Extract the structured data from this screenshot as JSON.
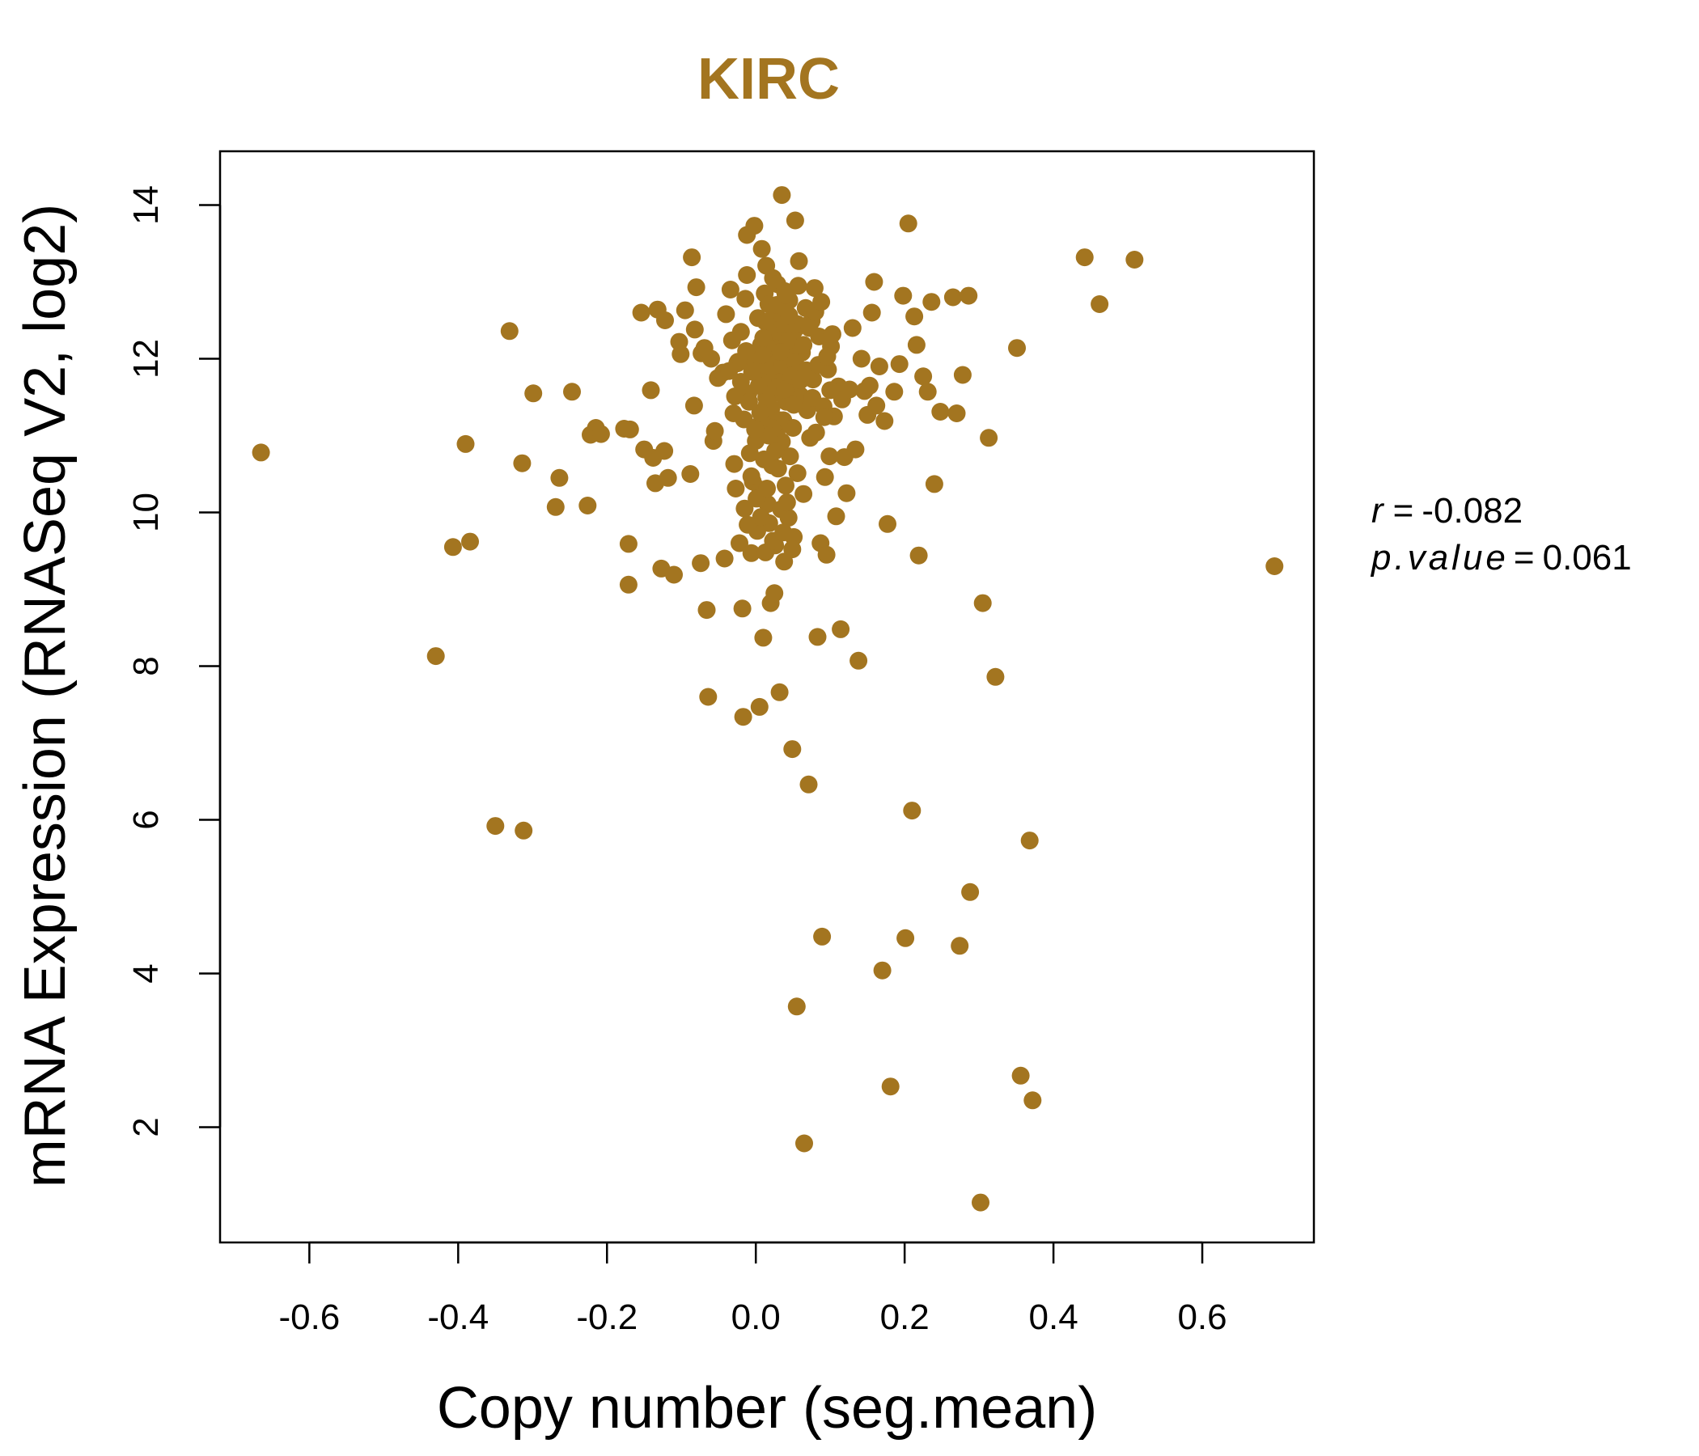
{
  "chart_data": {
    "type": "scatter",
    "title": "KIRC",
    "xlabel": "Copy number (seg.mean)",
    "ylabel": "mRNA Expression (RNASeq V2, log2)",
    "xlim": [
      -0.72,
      0.75
    ],
    "ylim": [
      0.5,
      14.7
    ],
    "xticks": [
      -0.6,
      -0.4,
      -0.2,
      0.0,
      0.2,
      0.4,
      0.6
    ],
    "xtick_labels": [
      "-0.6",
      "-0.4",
      "-0.2",
      "0.0",
      "0.2",
      "0.4",
      "0.6"
    ],
    "yticks": [
      2,
      4,
      6,
      8,
      10,
      12,
      14
    ],
    "ytick_labels": [
      "2",
      "4",
      "6",
      "8",
      "10",
      "12",
      "14"
    ],
    "grid": false,
    "legend": "none",
    "point_color": "#A37520",
    "stats": {
      "r_label": "r",
      "r_value": "-0.082",
      "p_label": "p.value",
      "p_value": "0.061"
    },
    "points": [
      [
        -0.665,
        10.78
      ],
      [
        -0.43,
        8.13
      ],
      [
        -0.407,
        9.55
      ],
      [
        -0.39,
        10.89
      ],
      [
        -0.384,
        9.62
      ],
      [
        -0.35,
        5.92
      ],
      [
        -0.331,
        12.36
      ],
      [
        -0.314,
        10.64
      ],
      [
        -0.312,
        5.86
      ],
      [
        -0.299,
        11.55
      ],
      [
        -0.269,
        10.07
      ],
      [
        -0.264,
        10.45
      ],
      [
        -0.247,
        11.57
      ],
      [
        -0.226,
        10.09
      ],
      [
        -0.222,
        11.01
      ],
      [
        -0.215,
        11.1
      ],
      [
        -0.208,
        11.02
      ],
      [
        -0.177,
        11.09
      ],
      [
        -0.171,
        9.59
      ],
      [
        -0.171,
        9.06
      ],
      [
        -0.169,
        11.08
      ],
      [
        -0.154,
        12.6
      ],
      [
        -0.15,
        10.82
      ],
      [
        -0.141,
        11.59
      ],
      [
        -0.138,
        10.71
      ],
      [
        -0.135,
        10.38
      ],
      [
        -0.132,
        12.64
      ],
      [
        -0.127,
        9.27
      ],
      [
        -0.123,
        10.8
      ],
      [
        -0.122,
        12.5
      ],
      [
        -0.118,
        10.45
      ],
      [
        -0.11,
        9.19
      ],
      [
        -0.103,
        12.22
      ],
      [
        -0.101,
        12.06
      ],
      [
        -0.095,
        12.63
      ],
      [
        -0.088,
        10.5
      ],
      [
        -0.086,
        13.32
      ],
      [
        -0.083,
        11.39
      ],
      [
        -0.082,
        12.38
      ],
      [
        -0.08,
        12.93
      ],
      [
        -0.074,
        9.34
      ],
      [
        -0.073,
        12.07
      ],
      [
        -0.069,
        12.14
      ],
      [
        -0.066,
        8.73
      ],
      [
        -0.064,
        7.6
      ],
      [
        -0.06,
        12.0
      ],
      [
        -0.057,
        10.93
      ],
      [
        -0.055,
        11.06
      ],
      [
        -0.051,
        11.75
      ],
      [
        -0.044,
        11.82
      ],
      [
        -0.042,
        9.4
      ],
      [
        -0.04,
        12.58
      ],
      [
        -0.034,
        12.9
      ],
      [
        -0.03,
        11.29
      ],
      [
        -0.029,
        10.63
      ],
      [
        -0.027,
        10.31
      ],
      [
        -0.025,
        11.94
      ],
      [
        -0.022,
        9.6
      ],
      [
        -0.02,
        12.35
      ],
      [
        -0.018,
        8.75
      ],
      [
        -0.017,
        7.34
      ],
      [
        -0.015,
        10.05
      ],
      [
        -0.014,
        12.78
      ],
      [
        -0.012,
        13.09
      ],
      [
        -0.012,
        13.61
      ],
      [
        -0.01,
        11.55
      ],
      [
        -0.008,
        10.77
      ],
      [
        -0.006,
        9.47
      ],
      [
        -0.004,
        10.4
      ],
      [
        -0.003,
        11.92
      ],
      [
        -0.002,
        13.73
      ],
      [
        0.0,
        10.93
      ],
      [
        0.002,
        9.76
      ],
      [
        0.003,
        12.53
      ],
      [
        0.004,
        11.13
      ],
      [
        0.005,
        7.47
      ],
      [
        0.006,
        10.3
      ],
      [
        0.007,
        12.18
      ],
      [
        0.008,
        13.43
      ],
      [
        0.009,
        11.63
      ],
      [
        0.01,
        8.37
      ],
      [
        0.011,
        10.69
      ],
      [
        0.012,
        12.85
      ],
      [
        0.013,
        9.48
      ],
      [
        0.014,
        13.21
      ],
      [
        0.015,
        11.41
      ],
      [
        0.016,
        10.11
      ],
      [
        0.017,
        12.71
      ],
      [
        0.018,
        9.86
      ],
      [
        0.019,
        11.28
      ],
      [
        0.02,
        8.82
      ],
      [
        0.021,
        12.42
      ],
      [
        0.022,
        10.61
      ],
      [
        0.023,
        13.05
      ],
      [
        0.024,
        11.83
      ],
      [
        0.025,
        8.95
      ],
      [
        0.026,
        9.57
      ],
      [
        0.027,
        12.12
      ],
      [
        0.028,
        11.05
      ],
      [
        0.029,
        12.97
      ],
      [
        0.03,
        10.85
      ],
      [
        0.031,
        12.27
      ],
      [
        0.032,
        7.66
      ],
      [
        0.033,
        11.7
      ],
      [
        0.034,
        10.04
      ],
      [
        0.035,
        14.13
      ],
      [
        0.036,
        12.59
      ],
      [
        0.037,
        11.2
      ],
      [
        0.038,
        9.36
      ],
      [
        0.039,
        12.88
      ],
      [
        0.04,
        10.35
      ],
      [
        0.041,
        11.96
      ],
      [
        0.042,
        12.46
      ],
      [
        0.043,
        11.47
      ],
      [
        0.044,
        9.93
      ],
      [
        0.045,
        12.76
      ],
      [
        0.046,
        10.73
      ],
      [
        0.047,
        11.62
      ],
      [
        0.048,
        12.21
      ],
      [
        0.049,
        6.92
      ],
      [
        0.05,
        11.1
      ],
      [
        0.051,
        9.68
      ],
      [
        0.052,
        12.37
      ],
      [
        0.053,
        13.8
      ],
      [
        0.054,
        11.79
      ],
      [
        0.055,
        3.57
      ],
      [
        0.056,
        10.51
      ],
      [
        0.057,
        12.95
      ],
      [
        0.058,
        13.27
      ],
      [
        0.06,
        11.52
      ],
      [
        0.062,
        12.08
      ],
      [
        0.064,
        10.24
      ],
      [
        0.065,
        1.79
      ],
      [
        0.067,
        12.66
      ],
      [
        0.069,
        11.33
      ],
      [
        0.071,
        6.46
      ],
      [
        0.073,
        10.97
      ],
      [
        0.075,
        12.49
      ],
      [
        0.077,
        11.73
      ],
      [
        0.079,
        12.92
      ],
      [
        0.081,
        11.04
      ],
      [
        0.083,
        8.38
      ],
      [
        0.085,
        12.29
      ],
      [
        0.087,
        9.6
      ],
      [
        0.089,
        4.48
      ],
      [
        0.091,
        11.38
      ],
      [
        0.093,
        10.46
      ],
      [
        0.095,
        9.45
      ],
      [
        0.097,
        11.86
      ],
      [
        0.099,
        10.73
      ],
      [
        0.101,
        12.16
      ],
      [
        0.103,
        12.32
      ],
      [
        0.105,
        11.25
      ],
      [
        0.108,
        9.95
      ],
      [
        0.111,
        11.64
      ],
      [
        0.114,
        8.48
      ],
      [
        0.116,
        11.47
      ],
      [
        0.119,
        10.72
      ],
      [
        0.122,
        10.25
      ],
      [
        0.126,
        11.6
      ],
      [
        0.13,
        12.4
      ],
      [
        0.134,
        10.82
      ],
      [
        0.138,
        8.07
      ],
      [
        0.142,
        12.0
      ],
      [
        0.146,
        11.58
      ],
      [
        0.15,
        11.27
      ],
      [
        0.153,
        11.65
      ],
      [
        0.156,
        12.6
      ],
      [
        0.159,
        13.0
      ],
      [
        0.162,
        11.39
      ],
      [
        0.166,
        11.9
      ],
      [
        0.17,
        4.04
      ],
      [
        0.173,
        11.19
      ],
      [
        0.177,
        9.85
      ],
      [
        0.181,
        2.53
      ],
      [
        0.186,
        11.57
      ],
      [
        0.193,
        11.93
      ],
      [
        0.198,
        12.82
      ],
      [
        0.201,
        4.46
      ],
      [
        0.205,
        13.76
      ],
      [
        0.21,
        6.12
      ],
      [
        0.213,
        12.55
      ],
      [
        0.216,
        12.18
      ],
      [
        0.219,
        9.44
      ],
      [
        0.225,
        11.77
      ],
      [
        0.231,
        11.57
      ],
      [
        0.236,
        12.74
      ],
      [
        0.24,
        10.37
      ],
      [
        0.248,
        11.31
      ],
      [
        0.265,
        12.8
      ],
      [
        0.27,
        11.29
      ],
      [
        0.274,
        4.36
      ],
      [
        0.278,
        11.79
      ],
      [
        0.286,
        12.82
      ],
      [
        0.288,
        5.06
      ],
      [
        0.302,
        1.02
      ],
      [
        0.305,
        8.82
      ],
      [
        0.313,
        10.97
      ],
      [
        0.322,
        7.86
      ],
      [
        0.351,
        12.14
      ],
      [
        0.356,
        2.67
      ],
      [
        0.368,
        5.73
      ],
      [
        0.372,
        2.35
      ],
      [
        0.442,
        13.32
      ],
      [
        0.462,
        12.71
      ],
      [
        0.509,
        13.29
      ],
      [
        0.697,
        9.3
      ],
      [
        0.016,
        11.74
      ],
      [
        0.024,
        11.98
      ],
      [
        0.031,
        11.56
      ],
      [
        0.038,
        12.02
      ],
      [
        0.044,
        11.84
      ],
      [
        0.019,
        12.15
      ],
      [
        0.027,
        11.63
      ],
      [
        0.034,
        12.3
      ],
      [
        0.041,
        11.44
      ],
      [
        0.012,
        11.87
      ],
      [
        0.008,
        12.05
      ],
      [
        0.05,
        12.12
      ],
      [
        0.046,
        11.68
      ],
      [
        0.021,
        11.36
      ],
      [
        0.029,
        12.44
      ],
      [
        0.036,
        11.92
      ],
      [
        0.014,
        11.5
      ],
      [
        0.053,
        11.95
      ],
      [
        0.009,
        11.7
      ],
      [
        0.043,
        12.23
      ],
      [
        0.025,
        12.6
      ],
      [
        0.032,
        11.2
      ],
      [
        0.018,
        12.34
      ],
      [
        0.039,
        11.6
      ],
      [
        0.006,
        11.3
      ],
      [
        0.056,
        12.45
      ],
      [
        0.022,
        11.1
      ],
      [
        0.048,
        11.78
      ],
      [
        0.013,
        12.48
      ],
      [
        0.035,
        10.92
      ],
      [
        0.004,
        11.65
      ],
      [
        0.06,
        11.72
      ],
      [
        0.028,
        12.7
      ],
      [
        0.045,
        12.56
      ],
      [
        0.017,
        11.0
      ],
      [
        0.033,
        12.09
      ],
      [
        0.01,
        12.27
      ],
      [
        0.051,
        11.4
      ],
      [
        0.026,
        10.8
      ],
      [
        0.04,
        12.83
      ],
      [
        -0.005,
        11.83
      ],
      [
        -0.009,
        11.44
      ],
      [
        -0.013,
        12.1
      ],
      [
        -0.016,
        11.21
      ],
      [
        -0.02,
        11.7
      ],
      [
        -0.024,
        11.96
      ],
      [
        -0.028,
        11.51
      ],
      [
        -0.032,
        12.24
      ],
      [
        -0.036,
        11.84
      ],
      [
        -0.001,
        11.08
      ],
      [
        0.064,
        12.18
      ],
      [
        0.068,
        11.85
      ],
      [
        0.072,
        12.4
      ],
      [
        0.076,
        11.49
      ],
      [
        0.08,
        12.61
      ],
      [
        0.084,
        11.92
      ],
      [
        0.088,
        12.74
      ],
      [
        0.092,
        11.24
      ],
      [
        0.096,
        12.03
      ],
      [
        0.1,
        11.59
      ],
      [
        -0.006,
        10.47
      ],
      [
        -0.011,
        9.84
      ],
      [
        0.001,
        10.18
      ],
      [
        0.007,
        9.94
      ],
      [
        0.015,
        10.31
      ],
      [
        0.023,
        9.63
      ],
      [
        0.03,
        10.57
      ],
      [
        0.037,
        9.74
      ],
      [
        0.042,
        10.13
      ],
      [
        0.049,
        9.52
      ]
    ]
  }
}
